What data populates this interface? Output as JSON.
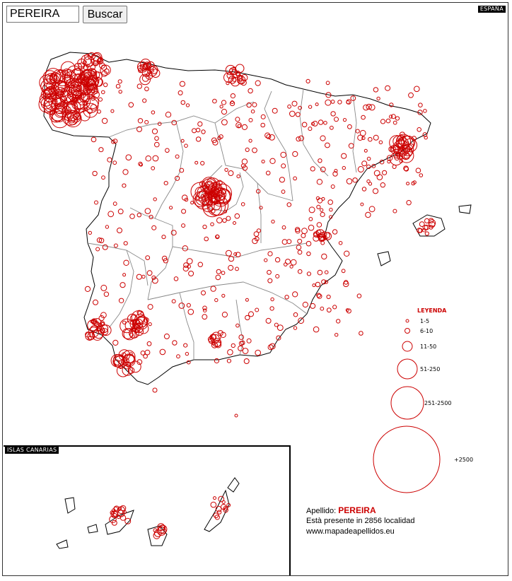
{
  "search": {
    "value": "PEREIRA",
    "button_label": "Buscar"
  },
  "map_titles": {
    "main": "ESPAÑA",
    "inset": "ISLAS CANARIAS"
  },
  "legend": {
    "title": "LEYENDA",
    "items": [
      {
        "label": "1-5"
      },
      {
        "label": "6-10"
      },
      {
        "label": "11-50"
      },
      {
        "label": "51-250"
      },
      {
        "label": "251-2500"
      },
      {
        "label": "+2500"
      }
    ]
  },
  "info": {
    "surname_label": "Apellido:",
    "surname": "PEREIRA",
    "presence_text": "Està presente in 2856 localidad",
    "url": "www.mapadeapellidos.eu"
  },
  "colors": {
    "marker": "#cc0000",
    "border_province": "#888888",
    "coast": "#000000"
  }
}
